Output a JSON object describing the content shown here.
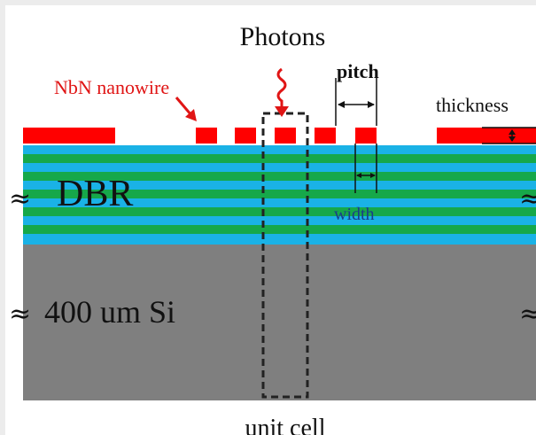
{
  "labels": {
    "photons": "Photons",
    "nanowire": "NbN nanowire",
    "pitch": "pitch",
    "thickness": "thickness",
    "width": "width",
    "dbr": "DBR",
    "substrate": "400 um Si",
    "unit_cell": "unit cell",
    "break_mark": "≈"
  },
  "colors": {
    "nanowire": "#ff0000",
    "dbr_blue": "#1ab2e6",
    "dbr_green": "#16a84a",
    "substrate": "#7f7f7f",
    "annotation_red": "#e01515",
    "width_label": "#1a3d8a",
    "text": "#111111"
  }
}
